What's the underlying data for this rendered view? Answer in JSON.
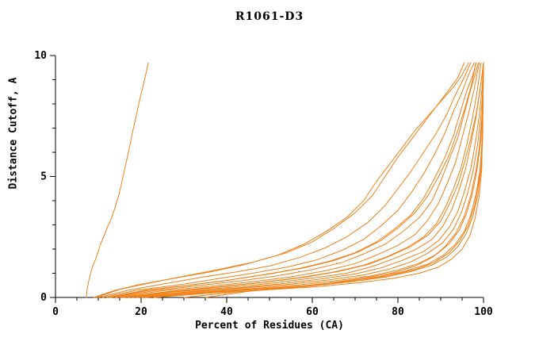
{
  "chart_data": {
    "type": "line",
    "title": "R1061-D3",
    "xlabel": "Percent of Residues (CA)",
    "ylabel": "Distance Cutoff, A",
    "xlim": [
      0,
      100
    ],
    "ylim": [
      0,
      10
    ],
    "x_major_ticks": [
      0,
      20,
      40,
      60,
      80,
      100
    ],
    "y_major_ticks": [
      0,
      5,
      10
    ],
    "x_minor_step": 5,
    "y_minor_step": 1,
    "grid": false,
    "legend_position": "none",
    "line_color": "#f08018",
    "axis_color": "#000000",
    "text_color": "#000000",
    "background_color": "#ffffff",
    "series": [
      [
        [
          7.2,
          0.0
        ],
        [
          7.4,
          0.35
        ],
        [
          7.8,
          0.7
        ],
        [
          8.3,
          1.05
        ],
        [
          8.7,
          1.3
        ],
        [
          9.4,
          1.6
        ],
        [
          10.0,
          1.9
        ],
        [
          10.4,
          2.15
        ],
        [
          11.0,
          2.4
        ],
        [
          11.6,
          2.65
        ],
        [
          12.1,
          2.9
        ],
        [
          12.7,
          3.1
        ],
        [
          13.2,
          3.35
        ],
        [
          13.8,
          3.65
        ],
        [
          14.3,
          3.95
        ],
        [
          14.9,
          4.3
        ],
        [
          15.4,
          4.7
        ],
        [
          15.9,
          5.1
        ],
        [
          16.4,
          5.5
        ],
        [
          16.9,
          5.9
        ],
        [
          17.4,
          6.3
        ],
        [
          17.9,
          6.75
        ],
        [
          18.4,
          7.15
        ],
        [
          18.9,
          7.55
        ],
        [
          19.4,
          7.95
        ],
        [
          19.9,
          8.35
        ],
        [
          20.4,
          8.7
        ],
        [
          20.8,
          9.0
        ],
        [
          21.2,
          9.3
        ],
        [
          21.5,
          9.55
        ],
        [
          21.7,
          9.7
        ]
      ],
      [
        [
          9,
          0.0
        ],
        [
          14,
          0.3
        ],
        [
          20,
          0.55
        ],
        [
          28,
          0.8
        ],
        [
          36,
          1.05
        ],
        [
          44,
          1.35
        ],
        [
          52,
          1.75
        ],
        [
          58,
          2.2
        ],
        [
          63,
          2.7
        ],
        [
          68,
          3.3
        ],
        [
          72,
          4.0
        ],
        [
          75,
          4.8
        ],
        [
          78,
          5.5
        ],
        [
          81,
          6.2
        ],
        [
          84,
          6.9
        ],
        [
          87,
          7.5
        ],
        [
          90,
          8.1
        ],
        [
          93,
          8.7
        ],
        [
          95,
          9.2
        ],
        [
          96.5,
          9.7
        ]
      ],
      [
        [
          9.5,
          0.0
        ],
        [
          15,
          0.33
        ],
        [
          22,
          0.6
        ],
        [
          30,
          0.88
        ],
        [
          38,
          1.15
        ],
        [
          46,
          1.45
        ],
        [
          54,
          1.85
        ],
        [
          60,
          2.3
        ],
        [
          65,
          2.85
        ],
        [
          70,
          3.5
        ],
        [
          74,
          4.2
        ],
        [
          77,
          5.0
        ],
        [
          80,
          5.8
        ],
        [
          83,
          6.5
        ],
        [
          86,
          7.2
        ],
        [
          89,
          7.9
        ],
        [
          92,
          8.6
        ],
        [
          94,
          9.1
        ],
        [
          95.5,
          9.7
        ]
      ],
      [
        [
          10,
          0.0
        ],
        [
          17,
          0.3
        ],
        [
          25,
          0.55
        ],
        [
          33,
          0.8
        ],
        [
          42,
          1.05
        ],
        [
          50,
          1.3
        ],
        [
          57,
          1.65
        ],
        [
          63,
          2.05
        ],
        [
          68,
          2.5
        ],
        [
          73,
          3.1
        ],
        [
          77,
          3.8
        ],
        [
          80,
          4.5
        ],
        [
          83,
          5.2
        ],
        [
          86,
          6.0
        ],
        [
          89,
          6.8
        ],
        [
          91.5,
          7.6
        ],
        [
          93.5,
          8.4
        ],
        [
          95.5,
          9.1
        ],
        [
          97,
          9.7
        ]
      ],
      [
        [
          11,
          0.0
        ],
        [
          19,
          0.3
        ],
        [
          28,
          0.5
        ],
        [
          37,
          0.75
        ],
        [
          46,
          1.0
        ],
        [
          54,
          1.25
        ],
        [
          61,
          1.55
        ],
        [
          67,
          1.95
        ],
        [
          72,
          2.4
        ],
        [
          76,
          2.95
        ],
        [
          80,
          3.6
        ],
        [
          83,
          4.3
        ],
        [
          86,
          5.1
        ],
        [
          88.5,
          5.9
        ],
        [
          91,
          6.8
        ],
        [
          93,
          7.7
        ],
        [
          95,
          8.5
        ],
        [
          96.5,
          9.2
        ],
        [
          97.8,
          9.7
        ]
      ],
      [
        [
          12,
          0.0
        ],
        [
          21,
          0.3
        ],
        [
          31,
          0.5
        ],
        [
          40,
          0.7
        ],
        [
          49,
          0.95
        ],
        [
          57,
          1.2
        ],
        [
          64,
          1.5
        ],
        [
          70,
          1.85
        ],
        [
          75,
          2.3
        ],
        [
          79,
          2.8
        ],
        [
          83,
          3.4
        ],
        [
          86,
          4.1
        ],
        [
          88.5,
          4.9
        ],
        [
          91,
          5.8
        ],
        [
          93,
          6.7
        ],
        [
          94.5,
          7.6
        ],
        [
          96,
          8.5
        ],
        [
          97.5,
          9.2
        ],
        [
          98.3,
          9.7
        ]
      ],
      [
        [
          12.5,
          0.0
        ],
        [
          22,
          0.3
        ],
        [
          32,
          0.52
        ],
        [
          41,
          0.73
        ],
        [
          50,
          0.97
        ],
        [
          58,
          1.22
        ],
        [
          65,
          1.52
        ],
        [
          71,
          1.9
        ],
        [
          76,
          2.35
        ],
        [
          80,
          2.87
        ],
        [
          84,
          3.5
        ],
        [
          87,
          4.2
        ],
        [
          89.5,
          5.0
        ],
        [
          92,
          5.9
        ],
        [
          94,
          6.9
        ],
        [
          95.8,
          7.9
        ],
        [
          97.2,
          8.8
        ],
        [
          98.2,
          9.7
        ]
      ],
      [
        [
          13,
          0.0
        ],
        [
          23,
          0.28
        ],
        [
          33,
          0.48
        ],
        [
          43,
          0.68
        ],
        [
          52,
          0.9
        ],
        [
          60,
          1.15
        ],
        [
          67,
          1.45
        ],
        [
          72,
          1.8
        ],
        [
          77,
          2.2
        ],
        [
          81,
          2.7
        ],
        [
          85,
          3.3
        ],
        [
          88,
          4.0
        ],
        [
          90,
          4.8
        ],
        [
          92,
          5.7
        ],
        [
          94,
          6.6
        ],
        [
          95.5,
          7.6
        ],
        [
          97,
          8.6
        ],
        [
          98,
          9.2
        ],
        [
          98.8,
          9.7
        ]
      ],
      [
        [
          14,
          0.0
        ],
        [
          25,
          0.28
        ],
        [
          36,
          0.46
        ],
        [
          46,
          0.65
        ],
        [
          55,
          0.85
        ],
        [
          63,
          1.1
        ],
        [
          70,
          1.4
        ],
        [
          75,
          1.75
        ],
        [
          80,
          2.15
        ],
        [
          84,
          2.6
        ],
        [
          87,
          3.2
        ],
        [
          89.5,
          3.9
        ],
        [
          91.5,
          4.7
        ],
        [
          93.5,
          5.6
        ],
        [
          95,
          6.6
        ],
        [
          96.5,
          7.6
        ],
        [
          97.8,
          8.6
        ],
        [
          99,
          9.7
        ]
      ],
      [
        [
          15,
          0.0
        ],
        [
          27,
          0.26
        ],
        [
          38,
          0.44
        ],
        [
          48,
          0.62
        ],
        [
          57,
          0.82
        ],
        [
          65,
          1.05
        ],
        [
          72,
          1.33
        ],
        [
          77,
          1.65
        ],
        [
          82,
          2.05
        ],
        [
          86,
          2.5
        ],
        [
          89,
          3.05
        ],
        [
          91,
          3.7
        ],
        [
          93,
          4.5
        ],
        [
          94.8,
          5.4
        ],
        [
          96.2,
          6.4
        ],
        [
          97.5,
          7.5
        ],
        [
          98.6,
          8.6
        ],
        [
          99.4,
          9.7
        ]
      ],
      [
        [
          15.5,
          0.0
        ],
        [
          28,
          0.26
        ],
        [
          39,
          0.44
        ],
        [
          49,
          0.63
        ],
        [
          58,
          0.83
        ],
        [
          66,
          1.07
        ],
        [
          73,
          1.36
        ],
        [
          78,
          1.7
        ],
        [
          83,
          2.1
        ],
        [
          87,
          2.57
        ],
        [
          90,
          3.15
        ],
        [
          92,
          3.85
        ],
        [
          94,
          4.65
        ],
        [
          95.5,
          5.55
        ],
        [
          97,
          6.55
        ],
        [
          98.3,
          7.6
        ],
        [
          99.3,
          8.7
        ],
        [
          100,
          9.7
        ]
      ],
      [
        [
          16,
          0.0
        ],
        [
          29,
          0.25
        ],
        [
          41,
          0.42
        ],
        [
          51,
          0.6
        ],
        [
          60,
          0.8
        ],
        [
          68,
          1.0
        ],
        [
          74,
          1.28
        ],
        [
          79,
          1.6
        ],
        [
          84,
          1.97
        ],
        [
          88,
          2.4
        ],
        [
          90.5,
          2.95
        ],
        [
          92.5,
          3.6
        ],
        [
          94.2,
          4.4
        ],
        [
          95.8,
          5.3
        ],
        [
          97,
          6.3
        ],
        [
          98.2,
          7.4
        ],
        [
          99.2,
          8.6
        ],
        [
          100,
          9.7
        ]
      ],
      [
        [
          17,
          0.0
        ],
        [
          31,
          0.24
        ],
        [
          43,
          0.4
        ],
        [
          53,
          0.57
        ],
        [
          62,
          0.76
        ],
        [
          70,
          0.97
        ],
        [
          76,
          1.22
        ],
        [
          81,
          1.53
        ],
        [
          86,
          1.9
        ],
        [
          89.5,
          2.35
        ],
        [
          92,
          2.9
        ],
        [
          94,
          3.55
        ],
        [
          95.5,
          4.35
        ],
        [
          97,
          5.3
        ],
        [
          98,
          6.3
        ],
        [
          99,
          7.5
        ],
        [
          99.7,
          8.7
        ],
        [
          100,
          9.7
        ]
      ],
      [
        [
          18,
          0.0
        ],
        [
          32,
          0.23
        ],
        [
          44,
          0.39
        ],
        [
          55,
          0.55
        ],
        [
          64,
          0.73
        ],
        [
          72,
          0.93
        ],
        [
          78,
          1.17
        ],
        [
          83,
          1.47
        ],
        [
          87,
          1.83
        ],
        [
          90.5,
          2.27
        ],
        [
          93,
          2.82
        ],
        [
          94.8,
          3.5
        ],
        [
          96.3,
          4.3
        ],
        [
          97.6,
          5.25
        ],
        [
          98.6,
          6.3
        ],
        [
          99.4,
          7.5
        ],
        [
          99.9,
          8.7
        ],
        [
          100,
          9.7
        ]
      ],
      [
        [
          19,
          0.0
        ],
        [
          34,
          0.22
        ],
        [
          46,
          0.37
        ],
        [
          57,
          0.52
        ],
        [
          66,
          0.7
        ],
        [
          74,
          0.9
        ],
        [
          80,
          1.13
        ],
        [
          85,
          1.42
        ],
        [
          89,
          1.78
        ],
        [
          92,
          2.22
        ],
        [
          94.3,
          2.77
        ],
        [
          96,
          3.45
        ],
        [
          97.4,
          4.3
        ],
        [
          98.5,
          5.3
        ],
        [
          99.3,
          6.4
        ],
        [
          99.8,
          7.6
        ],
        [
          100,
          9.7
        ]
      ],
      [
        [
          20,
          0.0
        ],
        [
          35,
          0.22
        ],
        [
          48,
          0.36
        ],
        [
          59,
          0.5
        ],
        [
          68,
          0.67
        ],
        [
          76,
          0.87
        ],
        [
          82,
          1.1
        ],
        [
          87,
          1.38
        ],
        [
          90.5,
          1.73
        ],
        [
          93.3,
          2.17
        ],
        [
          95.5,
          2.72
        ],
        [
          97,
          3.4
        ],
        [
          98.3,
          4.3
        ],
        [
          99.2,
          5.3
        ],
        [
          99.7,
          6.6
        ],
        [
          100,
          9.7
        ]
      ],
      [
        [
          21,
          0.0
        ],
        [
          36,
          0.21
        ],
        [
          49,
          0.35
        ],
        [
          60,
          0.49
        ],
        [
          69,
          0.65
        ],
        [
          77,
          0.84
        ],
        [
          83,
          1.07
        ],
        [
          88,
          1.34
        ],
        [
          91.5,
          1.68
        ],
        [
          94,
          2.1
        ],
        [
          96,
          2.65
        ],
        [
          97.5,
          3.35
        ],
        [
          98.7,
          4.25
        ],
        [
          99.4,
          5.3
        ],
        [
          99.8,
          6.6
        ],
        [
          100,
          9.7
        ]
      ],
      [
        [
          23,
          0.0
        ],
        [
          38,
          0.2
        ],
        [
          51,
          0.33
        ],
        [
          62,
          0.46
        ],
        [
          71,
          0.61
        ],
        [
          79,
          0.79
        ],
        [
          85,
          1.0
        ],
        [
          89.5,
          1.26
        ],
        [
          92.5,
          1.58
        ],
        [
          95,
          2.0
        ],
        [
          96.8,
          2.55
        ],
        [
          98,
          3.25
        ],
        [
          99,
          4.2
        ],
        [
          99.6,
          5.3
        ],
        [
          100,
          9.7
        ]
      ],
      [
        [
          30,
          0.0
        ],
        [
          42,
          0.22
        ],
        [
          53,
          0.37
        ],
        [
          63,
          0.53
        ],
        [
          71,
          0.7
        ],
        [
          78,
          0.9
        ],
        [
          84,
          1.15
        ],
        [
          88.5,
          1.45
        ],
        [
          92,
          1.85
        ],
        [
          94.5,
          2.35
        ],
        [
          96.5,
          3.0
        ],
        [
          98,
          3.85
        ],
        [
          99,
          4.9
        ],
        [
          99.6,
          6.1
        ],
        [
          100,
          9.7
        ]
      ],
      [
        [
          35,
          0.0
        ],
        [
          45,
          0.25
        ],
        [
          55,
          0.42
        ],
        [
          64,
          0.6
        ],
        [
          72,
          0.8
        ],
        [
          79,
          1.02
        ],
        [
          84,
          1.3
        ],
        [
          88,
          1.65
        ],
        [
          91,
          2.1
        ],
        [
          93.5,
          2.65
        ],
        [
          95.5,
          3.35
        ],
        [
          97,
          4.2
        ],
        [
          98.2,
          5.2
        ],
        [
          99.1,
          6.3
        ],
        [
          99.7,
          7.6
        ],
        [
          100,
          9.7
        ]
      ]
    ]
  }
}
